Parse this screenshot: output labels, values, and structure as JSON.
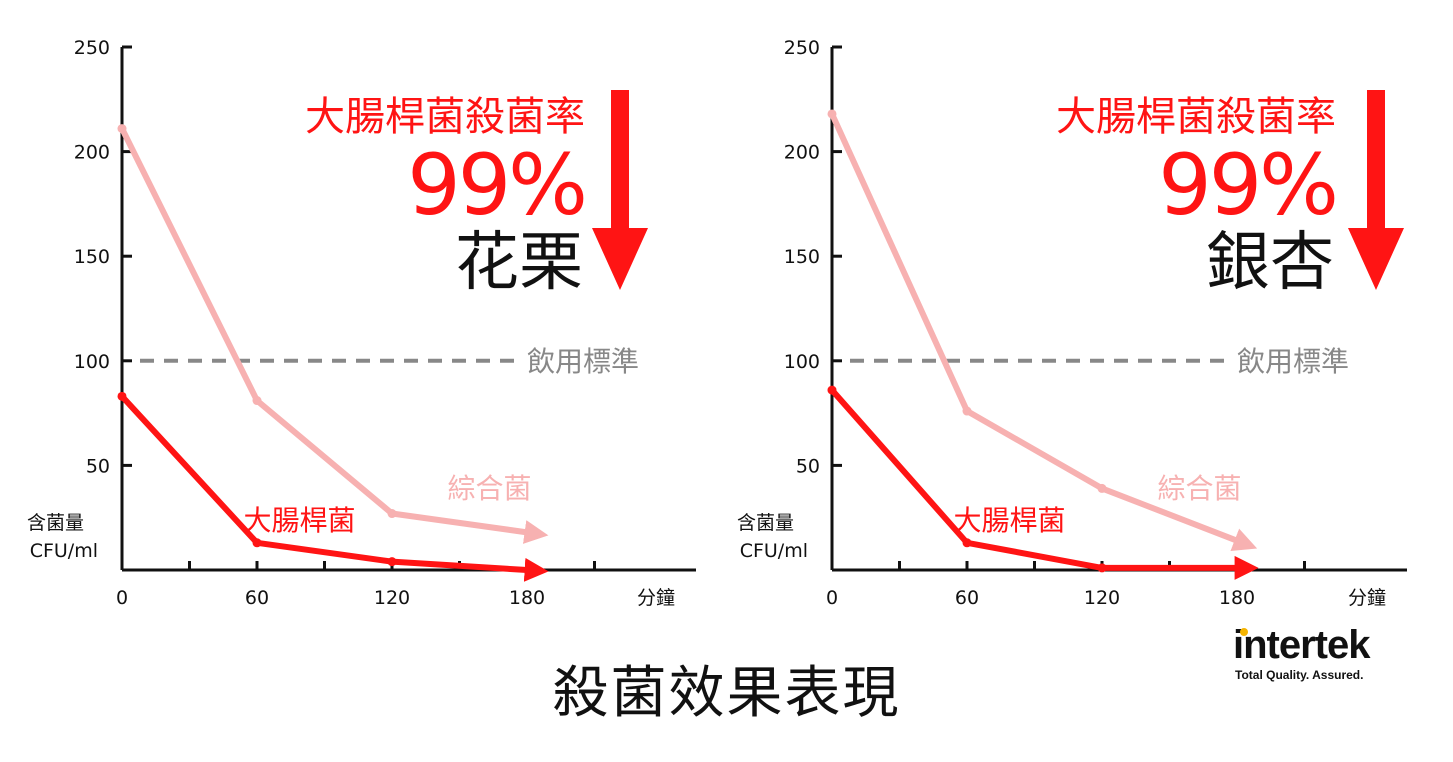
{
  "chart_data": [
    {
      "type": "line",
      "headline": "大腸桿菌殺菌率",
      "percent": "99%",
      "subject": "花栗",
      "ylabel": [
        "含菌量",
        "CFU/ml"
      ],
      "xlabel": "分鐘",
      "x_ticks": [
        "0",
        "60",
        "120",
        "180"
      ],
      "y_ticks": [
        "250",
        "200",
        "150",
        "100",
        "50"
      ],
      "ylim": [
        0,
        250
      ],
      "xlim": [
        0,
        225
      ],
      "reference": {
        "label": "飲用標準",
        "value": 100
      },
      "series": [
        {
          "name": "綜合菌",
          "color": "#f7b1b1",
          "x": [
            0,
            60,
            120
          ],
          "y": [
            211,
            81,
            27
          ],
          "arrow_to": [
            180,
            18
          ]
        },
        {
          "name": "大腸桿菌",
          "color": "#ff1414",
          "x": [
            0,
            60,
            120
          ],
          "y": [
            83,
            13,
            4
          ],
          "arrow_to": [
            180,
            0
          ]
        }
      ]
    },
    {
      "type": "line",
      "headline": "大腸桿菌殺菌率",
      "percent": "99%",
      "subject": "銀杏",
      "ylabel": [
        "含菌量",
        "CFU/ml"
      ],
      "xlabel": "分鐘",
      "x_ticks": [
        "0",
        "60",
        "120",
        "180"
      ],
      "y_ticks": [
        "250",
        "200",
        "150",
        "100",
        "50"
      ],
      "ylim": [
        0,
        250
      ],
      "xlim": [
        0,
        225
      ],
      "reference": {
        "label": "飲用標準",
        "value": 100
      },
      "series": [
        {
          "name": "綜合菌",
          "color": "#f7b1b1",
          "x": [
            0,
            60,
            120
          ],
          "y": [
            218,
            76,
            39
          ],
          "arrow_to": [
            180,
            14
          ]
        },
        {
          "name": "大腸桿菌",
          "color": "#ff1414",
          "x": [
            0,
            60,
            120
          ],
          "y": [
            86,
            13,
            1
          ],
          "arrow_to": [
            180,
            1
          ]
        }
      ]
    }
  ],
  "caption": "殺菌效果表現",
  "logo": {
    "name": "intertek",
    "tagline": "Total Quality. Assured."
  }
}
